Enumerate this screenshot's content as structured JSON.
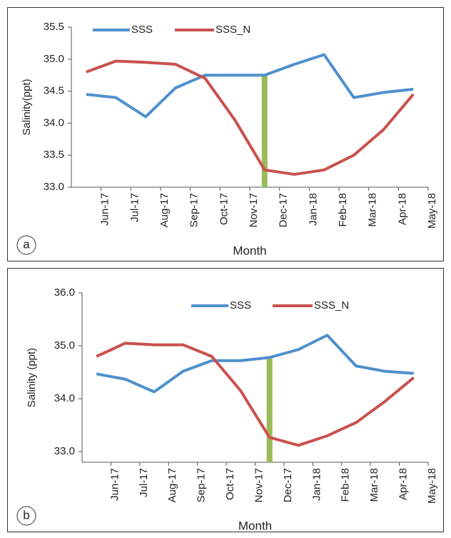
{
  "chart_data": [
    {
      "type": "line",
      "panel_label": "a",
      "y_label": "Salinity(ppt)",
      "x_label": "Month",
      "categories": [
        "Jun-17",
        "Jul-17",
        "Aug-17",
        "Sep-17",
        "Oct-17",
        "Nov-17",
        "Dec-17",
        "Jan-18",
        "Feb-18",
        "Mar-18",
        "Apr-18",
        "May-18"
      ],
      "series": [
        {
          "name": "SSS",
          "color": "#4f90cd",
          "values": [
            34.45,
            34.4,
            34.1,
            34.55,
            34.75,
            34.75,
            34.75,
            34.92,
            35.07,
            34.4,
            34.48,
            34.53
          ]
        },
        {
          "name": "SSS_N",
          "color": "#c9514d",
          "values": [
            34.8,
            34.97,
            34.95,
            34.92,
            34.7,
            34.05,
            33.27,
            33.2,
            33.27,
            33.5,
            33.9,
            34.45
          ]
        }
      ],
      "highlight": {
        "category_index": 6,
        "color": "#9bbb59"
      },
      "ylim": [
        33.0,
        35.5
      ],
      "yticks": [
        {
          "value": 33,
          "label": "33.0"
        },
        33.5,
        {
          "value": 34,
          "label": "34.0"
        },
        34.5,
        {
          "value": 35,
          "label": "35.0"
        },
        35.5
      ],
      "legend": "top"
    },
    {
      "type": "line",
      "panel_label": "b",
      "y_label": "Salinity (ppt)",
      "x_label": "Month",
      "categories": [
        "Jun-17",
        "Jul-17",
        "Aug-17",
        "Sep-17",
        "Oct-17",
        "Nov-17",
        "Dec-17",
        "Jan-18",
        "Feb-18",
        "Mar-18",
        "Apr-18",
        "May-18"
      ],
      "series": [
        {
          "name": "SSS",
          "color": "#4f90cd",
          "values": [
            34.47,
            34.37,
            34.13,
            34.52,
            34.72,
            34.72,
            34.78,
            34.93,
            35.2,
            34.62,
            34.52,
            34.48
          ]
        },
        {
          "name": "SSS_N",
          "color": "#c9514d",
          "values": [
            34.8,
            35.05,
            35.02,
            35.02,
            34.8,
            34.15,
            33.27,
            33.12,
            33.3,
            33.55,
            33.95,
            34.4
          ]
        }
      ],
      "highlight": {
        "category_index": 6,
        "color": "#9bbb59"
      },
      "ylim": [
        32.8,
        36.0
      ],
      "yticks": [
        {
          "value": 33,
          "label": "33.0"
        },
        {
          "value": 34,
          "label": "34.0"
        },
        {
          "value": 35,
          "label": "35.0"
        },
        {
          "value": 36,
          "label": "36.0"
        }
      ],
      "legend": "top"
    }
  ]
}
